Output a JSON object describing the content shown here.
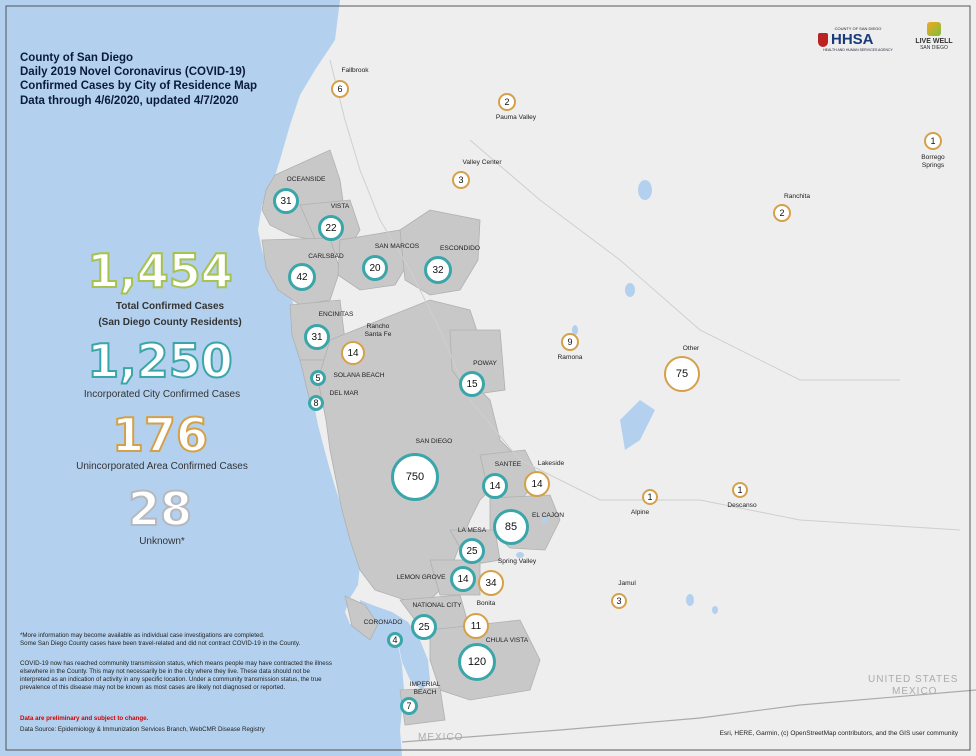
{
  "title": {
    "line1": "County of San Diego",
    "line2": "Daily 2019 Novel Coronavirus (COVID-19)",
    "line3": "Confirmed Cases by City of Residence Map",
    "line4": "Data through 4/6/2020, updated 4/7/2020"
  },
  "logos": {
    "hhsa_top": "COUNTY OF SAN DIEGO",
    "hhsa": "HHSA",
    "hhsa_sub": "HEALTH AND HUMAN SERVICES AGENCY",
    "livewell": "LIVE WELL",
    "livewell_sub": "SAN DIEGO"
  },
  "stats": {
    "total_value": "1,454",
    "total_caption1": "Total Confirmed Cases",
    "total_caption2": "(San Diego County Residents)",
    "incorporated_value": "1,250",
    "incorporated_caption": "Incorporated City Confirmed Cases",
    "unincorporated_value": "176",
    "unincorporated_caption": "Unincorporated Area Confirmed Cases",
    "unknown_value": "28",
    "unknown_caption": "Unknown*"
  },
  "colors": {
    "total": "#a6c24f",
    "incorporated": "#3aa6a9",
    "unincorporated": "#d4a14a",
    "unknown": "#b6b9bd",
    "ocean": "#b3d1ee",
    "land": "#eeeeee",
    "city_area": "#c8c8c8",
    "red_note": "#d00000"
  },
  "incorporated_cities": [
    {
      "name": "OCEANSIDE",
      "cases": "31"
    },
    {
      "name": "VISTA",
      "cases": "22"
    },
    {
      "name": "CARLSBAD",
      "cases": "42"
    },
    {
      "name": "SAN MARCOS",
      "cases": "20"
    },
    {
      "name": "ESCONDIDO",
      "cases": "32"
    },
    {
      "name": "ENCINITAS",
      "cases": "31"
    },
    {
      "name": "SOLANA BEACH",
      "cases": "5"
    },
    {
      "name": "DEL MAR",
      "cases": "8"
    },
    {
      "name": "POWAY",
      "cases": "15"
    },
    {
      "name": "SAN DIEGO",
      "cases": "750"
    },
    {
      "name": "SANTEE",
      "cases": "14"
    },
    {
      "name": "EL CAJON",
      "cases": "85"
    },
    {
      "name": "LA MESA",
      "cases": "25"
    },
    {
      "name": "LEMON GROVE",
      "cases": "14"
    },
    {
      "name": "NATIONAL CITY",
      "cases": "25"
    },
    {
      "name": "CORONADO",
      "cases": "4"
    },
    {
      "name": "CHULA VISTA",
      "cases": "120"
    },
    {
      "name": "IMPERIAL BEACH",
      "cases": "7"
    }
  ],
  "unincorporated_areas": [
    {
      "name": "Fallbrook",
      "cases": "6"
    },
    {
      "name": "Pauma Valley",
      "cases": "2"
    },
    {
      "name": "Valley Center",
      "cases": "3"
    },
    {
      "name": "Borrego Springs",
      "cases": "1"
    },
    {
      "name": "Ranchita",
      "cases": "2"
    },
    {
      "name": "Rancho Santa Fe",
      "cases": "14"
    },
    {
      "name": "Ramona",
      "cases": "9"
    },
    {
      "name": "Other",
      "cases": "75"
    },
    {
      "name": "Lakeside",
      "cases": "14"
    },
    {
      "name": "Alpine",
      "cases": "1"
    },
    {
      "name": "Descanso",
      "cases": "1"
    },
    {
      "name": "Spring Valley",
      "cases": "34"
    },
    {
      "name": "Jamul",
      "cases": "3"
    },
    {
      "name": "Bonita",
      "cases": "11"
    }
  ],
  "map_labels": {
    "us": "UNITED STATES",
    "mexico": "MEXICO",
    "mexico_bottom": "MEXICO"
  },
  "footnotes": {
    "note1": "*More information may become available as individual case investigations are completed.",
    "note2": "Some San Diego County cases have been travel-related and did not contract COVID-19 in the County.",
    "note3": "COVID-19 now has reached community transmission status, which means people may have contracted the illness elsewhere in the County. This may not necessarily be in the city where they live. These data should not be interpreted as an indication of activity in any specific location. Under a community transmission status, the true prevalence of this disease may not be known as most cases are likely not diagnosed or reported.",
    "red_note": "Data are preliminary and subject to change.",
    "source": "Data Source: Epidemiology & Immunization Services Branch, WebCMR Disease Registry"
  },
  "attribution": "Esri, HERE, Garmin, (c) OpenStreetMap contributors, and the GIS user community"
}
